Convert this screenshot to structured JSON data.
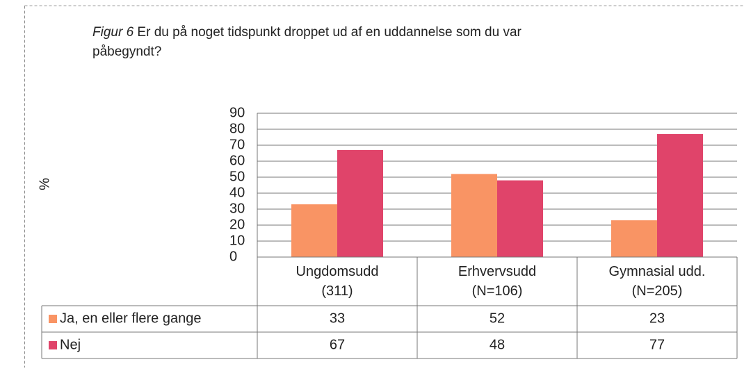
{
  "chart_data": {
    "type": "bar",
    "figure_label": "Figur 6",
    "title": "Er du på noget tidspunkt droppet ud af en uddannelse som du var påbegyndt?",
    "y_label": "%",
    "categories": [
      "Ungdomsudd\n(311)",
      "Erhvervsudd\n(N=106)",
      "Gymnasial udd.\n(N=205)"
    ],
    "series": [
      {
        "name": "Ja, en eller flere gange",
        "color": "#f99464",
        "values": [
          33,
          52,
          23
        ]
      },
      {
        "name": "Nej",
        "color": "#e0446a",
        "values": [
          67,
          48,
          77
        ]
      }
    ],
    "ylim": [
      0,
      90
    ],
    "yticks": [
      0,
      10,
      20,
      30,
      40,
      50,
      60,
      70,
      80,
      90
    ],
    "grid": true,
    "data_table": true
  }
}
